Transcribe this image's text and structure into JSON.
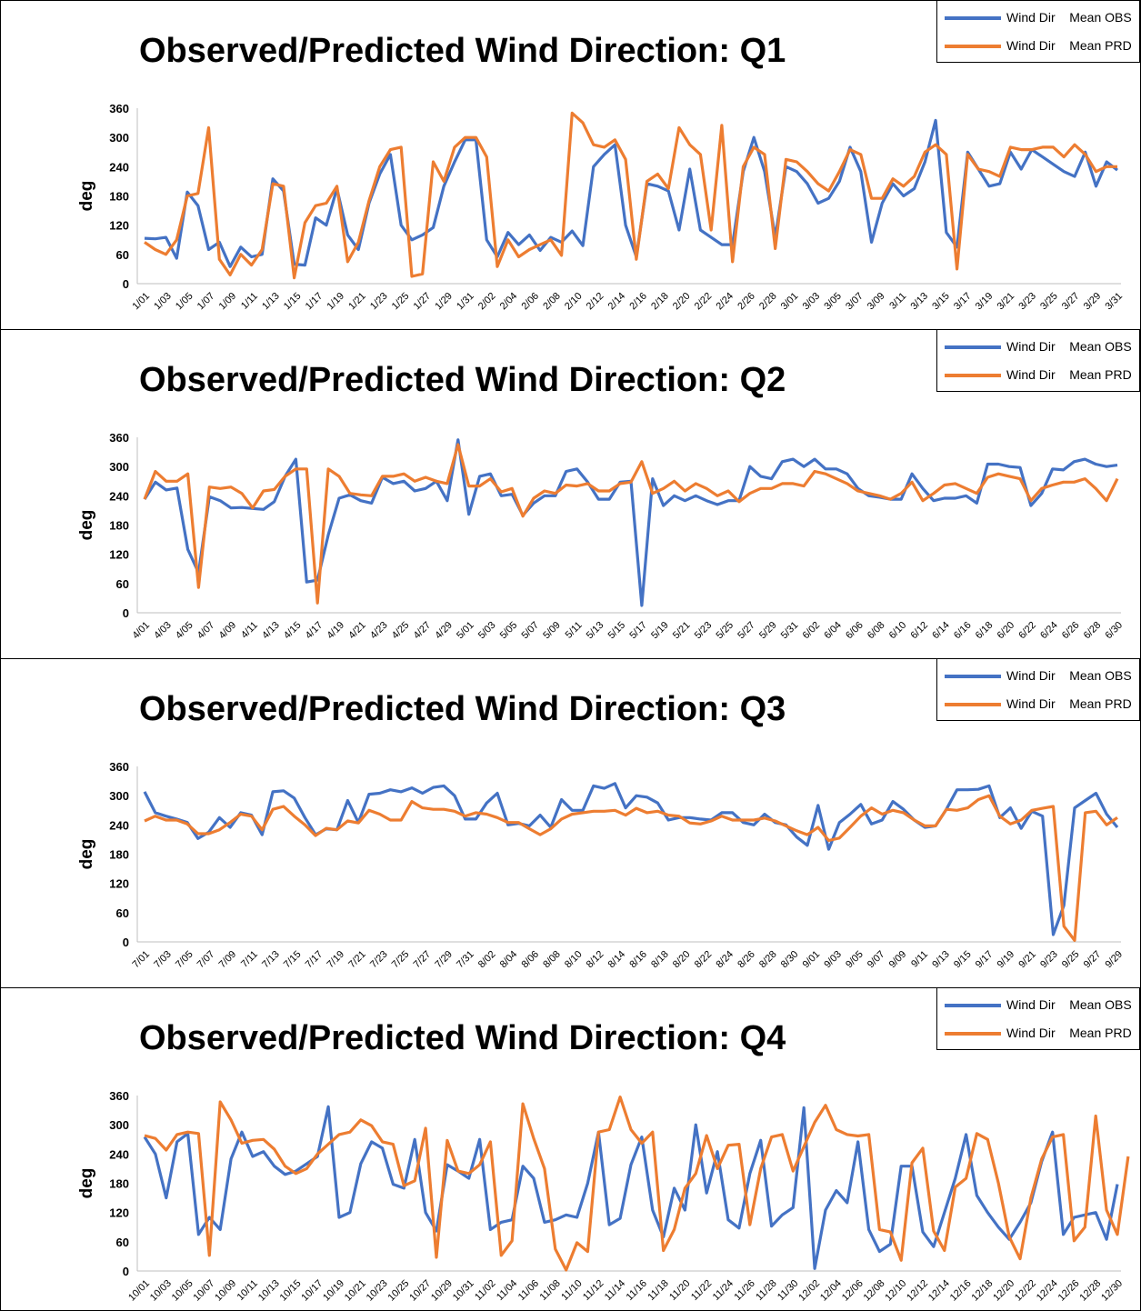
{
  "legend": {
    "obs_label": "Wind Dir    Mean OBS",
    "prd_label": "Wind Dir    Mean PRD",
    "obs_color": "#4472C4",
    "prd_color": "#ED7D31"
  },
  "chart_data": [
    {
      "type": "line",
      "title": "Observed/Predicted Wind Direction: Q1",
      "ylabel": "deg",
      "xlabel": "",
      "ylim": [
        0,
        360
      ],
      "yticks": [
        0,
        60,
        120,
        180,
        240,
        300,
        360
      ],
      "legend_position": "top-right",
      "grid": false,
      "tick_labels": [
        "1/01",
        "1/03",
        "1/05",
        "1/07",
        "1/09",
        "1/11",
        "1/13",
        "1/15",
        "1/17",
        "1/19",
        "1/21",
        "1/23",
        "1/25",
        "1/27",
        "1/29",
        "1/31",
        "2/02",
        "2/04",
        "2/06",
        "2/08",
        "2/10",
        "2/12",
        "2/14",
        "2/16",
        "2/18",
        "2/20",
        "2/22",
        "2/24",
        "2/26",
        "2/28",
        "3/01",
        "3/03",
        "3/05",
        "3/07",
        "3/09",
        "3/11",
        "3/13",
        "3/15",
        "3/17",
        "3/19",
        "3/21",
        "3/23",
        "3/25",
        "3/27",
        "3/29",
        "3/31"
      ],
      "series": [
        {
          "name": "Wind Dir    Mean OBS",
          "values": [
            93,
            92,
            95,
            52,
            188,
            160,
            70,
            85,
            35,
            75,
            55,
            60,
            215,
            190,
            40,
            38,
            135,
            120,
            195,
            100,
            70,
            165,
            225,
            265,
            120,
            90,
            100,
            115,
            200,
            250,
            295,
            295,
            90,
            55,
            105,
            80,
            100,
            68,
            95,
            85,
            108,
            78,
            240,
            265,
            285,
            120,
            55,
            205,
            200,
            190,
            110,
            235,
            110,
            95,
            80,
            80,
            230,
            300,
            230,
            95,
            240,
            230,
            205,
            165,
            175,
            210,
            280,
            230,
            85,
            165,
            205,
            180,
            195,
            250,
            335,
            105,
            75,
            270,
            235,
            200,
            205,
            270,
            235,
            275,
            260,
            245,
            230,
            220,
            270,
            200,
            250,
            233
          ]
        },
        {
          "name": "Wind Dir    Mean PRD",
          "values": [
            85,
            70,
            60,
            90,
            180,
            185,
            320,
            50,
            18,
            60,
            38,
            70,
            205,
            200,
            12,
            125,
            160,
            165,
            200,
            45,
            85,
            170,
            240,
            275,
            280,
            15,
            20,
            250,
            210,
            280,
            300,
            300,
            260,
            35,
            90,
            55,
            70,
            80,
            90,
            58,
            350,
            330,
            285,
            280,
            295,
            255,
            50,
            210,
            225,
            195,
            320,
            285,
            265,
            110,
            325,
            45,
            240,
            280,
            265,
            72,
            255,
            250,
            230,
            205,
            190,
            230,
            275,
            265,
            175,
            175,
            215,
            200,
            220,
            270,
            285,
            265,
            30,
            265,
            235,
            230,
            220,
            280,
            275,
            275,
            280,
            280,
            260,
            285,
            265,
            230,
            240,
            240
          ]
        }
      ]
    },
    {
      "type": "line",
      "title": "Observed/Predicted Wind Direction: Q2",
      "ylabel": "deg",
      "xlabel": "",
      "ylim": [
        0,
        360
      ],
      "yticks": [
        0,
        60,
        120,
        180,
        240,
        300,
        360
      ],
      "legend_position": "top-right",
      "grid": false,
      "tick_labels": [
        "4/01",
        "4/03",
        "4/05",
        "4/07",
        "4/09",
        "4/11",
        "4/13",
        "4/15",
        "4/17",
        "4/19",
        "4/21",
        "4/23",
        "4/25",
        "4/27",
        "4/29",
        "5/01",
        "5/03",
        "5/05",
        "5/07",
        "5/09",
        "5/11",
        "5/13",
        "5/15",
        "5/17",
        "5/19",
        "5/21",
        "5/23",
        "5/25",
        "5/27",
        "5/29",
        "5/31",
        "6/02",
        "6/04",
        "6/06",
        "6/08",
        "6/10",
        "6/12",
        "6/14",
        "6/16",
        "6/18",
        "6/20",
        "6/22",
        "6/24",
        "6/26",
        "6/28",
        "6/30"
      ],
      "series": [
        {
          "name": "Wind Dir    Mean OBS",
          "values": [
            233,
            268,
            252,
            256,
            130,
            82,
            238,
            230,
            215,
            216,
            214,
            212,
            228,
            280,
            315,
            63,
            67,
            160,
            235,
            242,
            230,
            225,
            278,
            265,
            270,
            250,
            255,
            270,
            230,
            355,
            202,
            280,
            285,
            240,
            243,
            200,
            225,
            240,
            240,
            290,
            295,
            268,
            233,
            233,
            268,
            270,
            15,
            275,
            220,
            240,
            230,
            240,
            230,
            222,
            230,
            230,
            300,
            280,
            275,
            310,
            315,
            300,
            315,
            295,
            295,
            285,
            255,
            240,
            237,
            233,
            233,
            285,
            255,
            230,
            235,
            235,
            240,
            225,
            305,
            305,
            300,
            298,
            220,
            245,
            295,
            293,
            310,
            315,
            305,
            300,
            303
          ]
        },
        {
          "name": "Wind Dir    Mean PRD",
          "values": [
            233,
            290,
            270,
            270,
            285,
            52,
            258,
            255,
            258,
            245,
            215,
            250,
            253,
            280,
            295,
            295,
            20,
            295,
            280,
            245,
            242,
            240,
            280,
            280,
            285,
            270,
            278,
            270,
            265,
            345,
            260,
            260,
            275,
            248,
            255,
            198,
            235,
            250,
            245,
            262,
            260,
            265,
            250,
            250,
            265,
            268,
            310,
            245,
            255,
            270,
            250,
            265,
            255,
            240,
            250,
            228,
            245,
            255,
            255,
            265,
            265,
            260,
            290,
            285,
            275,
            265,
            250,
            245,
            240,
            233,
            245,
            268,
            230,
            245,
            262,
            265,
            255,
            245,
            278,
            285,
            280,
            275,
            230,
            255,
            262,
            268,
            268,
            275,
            255,
            230,
            275
          ]
        }
      ]
    },
    {
      "type": "line",
      "title": "Observed/Predicted Wind Direction: Q3",
      "ylabel": "deg",
      "xlabel": "",
      "ylim": [
        0,
        360
      ],
      "yticks": [
        0,
        60,
        120,
        180,
        240,
        300,
        360
      ],
      "legend_position": "top-right",
      "grid": false,
      "tick_labels": [
        "7/01",
        "7/03",
        "7/05",
        "7/07",
        "7/09",
        "7/11",
        "7/13",
        "7/15",
        "7/17",
        "7/19",
        "7/21",
        "7/23",
        "7/25",
        "7/27",
        "7/29",
        "7/31",
        "8/02",
        "8/04",
        "8/06",
        "8/08",
        "8/10",
        "8/12",
        "8/14",
        "8/16",
        "8/18",
        "8/20",
        "8/22",
        "8/24",
        "8/26",
        "8/28",
        "8/30",
        "9/01",
        "9/03",
        "9/05",
        "9/07",
        "9/09",
        "9/11",
        "9/13",
        "9/15",
        "9/17",
        "9/19",
        "9/21",
        "9/23",
        "9/25",
        "9/27",
        "9/29"
      ],
      "series": [
        {
          "name": "Wind Dir    Mean OBS",
          "values": [
            308,
            265,
            258,
            252,
            245,
            212,
            225,
            255,
            235,
            265,
            260,
            220,
            308,
            310,
            295,
            255,
            220,
            232,
            230,
            290,
            245,
            303,
            305,
            312,
            308,
            316,
            305,
            317,
            320,
            300,
            252,
            252,
            285,
            305,
            240,
            243,
            238,
            260,
            235,
            292,
            270,
            270,
            320,
            315,
            325,
            275,
            300,
            297,
            285,
            250,
            255,
            255,
            252,
            250,
            265,
            265,
            245,
            240,
            262,
            245,
            240,
            215,
            198,
            280,
            190,
            245,
            262,
            282,
            242,
            250,
            288,
            272,
            250,
            235,
            238,
            272,
            312,
            312,
            313,
            320,
            255,
            275,
            233,
            268,
            258,
            15,
            75,
            275,
            290,
            305,
            262,
            235
          ]
        },
        {
          "name": "Wind Dir    Mean PRD",
          "values": [
            248,
            258,
            250,
            250,
            242,
            222,
            222,
            230,
            245,
            262,
            258,
            230,
            272,
            278,
            258,
            240,
            218,
            233,
            230,
            248,
            244,
            270,
            262,
            250,
            250,
            288,
            275,
            272,
            272,
            268,
            258,
            265,
            262,
            255,
            245,
            245,
            232,
            220,
            232,
            252,
            262,
            265,
            268,
            268,
            270,
            260,
            274,
            265,
            268,
            260,
            258,
            244,
            242,
            248,
            258,
            250,
            250,
            250,
            254,
            248,
            238,
            228,
            220,
            235,
            208,
            213,
            235,
            258,
            275,
            262,
            270,
            265,
            250,
            238,
            238,
            272,
            270,
            275,
            292,
            300,
            258,
            242,
            250,
            270,
            274,
            278,
            32,
            3,
            265,
            268,
            240,
            255
          ]
        }
      ]
    },
    {
      "type": "line",
      "title": "Observed/Predicted Wind Direction: Q4",
      "ylabel": "deg",
      "xlabel": "",
      "ylim": [
        0,
        360
      ],
      "yticks": [
        0,
        60,
        120,
        180,
        240,
        300,
        360
      ],
      "legend_position": "top-right",
      "grid": false,
      "tick_labels": [
        "10/01",
        "10/03",
        "10/05",
        "10/07",
        "10/09",
        "10/11",
        "10/13",
        "10/15",
        "10/17",
        "10/19",
        "10/21",
        "10/23",
        "10/25",
        "10/27",
        "10/29",
        "10/31",
        "11/02",
        "11/04",
        "11/06",
        "11/08",
        "11/10",
        "11/12",
        "11/14",
        "11/16",
        "11/18",
        "11/20",
        "11/22",
        "11/24",
        "11/26",
        "11/28",
        "11/30",
        "12/02",
        "12/04",
        "12/06",
        "12/08",
        "12/10",
        "12/12",
        "12/14",
        "12/16",
        "12/18",
        "12/20",
        "12/22",
        "12/24",
        "12/26",
        "12/28",
        "12/30"
      ],
      "series": [
        {
          "name": "Wind Dir    Mean OBS",
          "values": [
            275,
            240,
            150,
            265,
            282,
            75,
            110,
            85,
            230,
            285,
            235,
            245,
            215,
            198,
            205,
            220,
            235,
            337,
            110,
            120,
            220,
            265,
            252,
            178,
            170,
            270,
            120,
            82,
            218,
            205,
            190,
            270,
            85,
            100,
            105,
            215,
            190,
            100,
            105,
            115,
            110,
            180,
            285,
            95,
            108,
            218,
            275,
            125,
            70,
            170,
            125,
            300,
            160,
            245,
            105,
            88,
            200,
            268,
            92,
            115,
            130,
            335,
            5,
            125,
            165,
            140,
            265,
            85,
            40,
            55,
            215,
            215,
            80,
            50,
            120,
            190,
            280,
            155,
            120,
            90,
            65,
            100,
            140,
            225,
            285,
            75,
            110,
            115,
            120,
            65,
            178
          ]
        },
        {
          "name": "Wind Dir    Mean PRD",
          "values": [
            278,
            272,
            248,
            280,
            285,
            282,
            32,
            347,
            310,
            262,
            268,
            270,
            250,
            215,
            200,
            210,
            240,
            260,
            280,
            285,
            310,
            298,
            265,
            260,
            175,
            185,
            293,
            28,
            268,
            205,
            200,
            218,
            265,
            32,
            62,
            343,
            272,
            210,
            45,
            2,
            58,
            40,
            285,
            290,
            357,
            290,
            262,
            285,
            42,
            85,
            170,
            200,
            278,
            210,
            258,
            260,
            95,
            210,
            275,
            280,
            205,
            255,
            305,
            340,
            290,
            280,
            277,
            280,
            85,
            80,
            22,
            222,
            252,
            82,
            42,
            172,
            190,
            282,
            270,
            180,
            70,
            25,
            150,
            230,
            275,
            280,
            62,
            90,
            318,
            125,
            75,
            235
          ]
        }
      ]
    }
  ]
}
